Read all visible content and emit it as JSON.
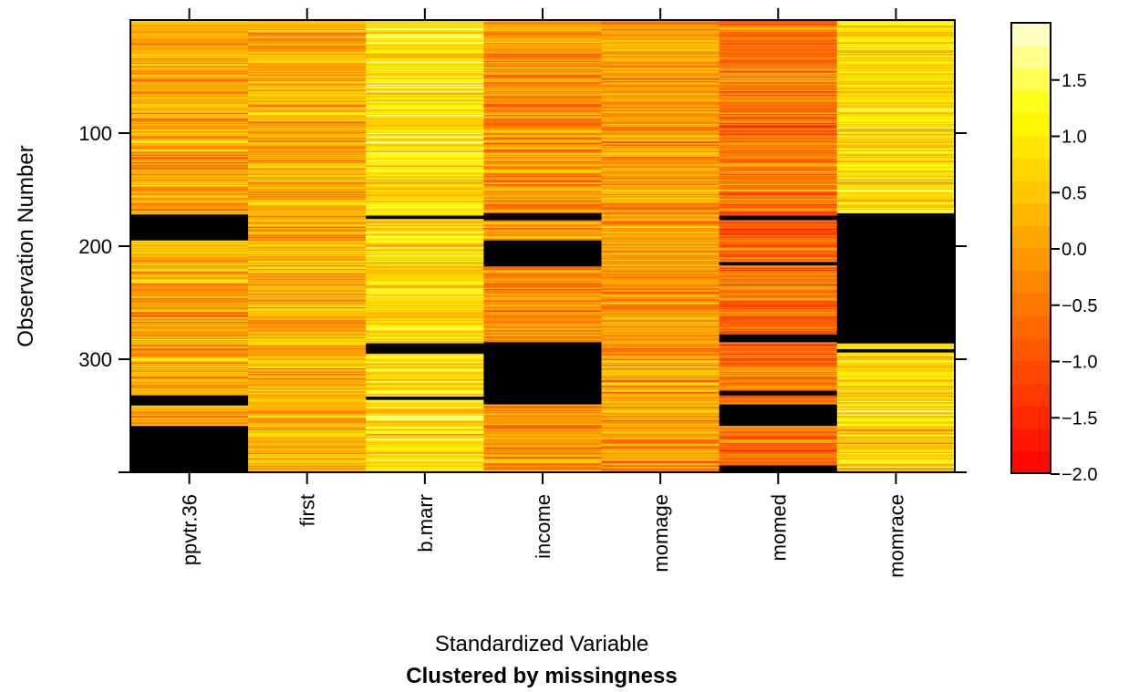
{
  "chart_data": {
    "type": "heatmap",
    "title": "Clustered by missingness",
    "xlabel": "Standardized Variable",
    "ylabel": "Observation Number",
    "variables": [
      "ppvtr.36",
      "first",
      "b.marr",
      "income",
      "momage",
      "momed",
      "momrace"
    ],
    "n_observations": 400,
    "y_ticks": [
      100,
      200,
      300
    ],
    "y_tick_labels": [
      "100",
      "200",
      "300"
    ],
    "colorbar": {
      "range": [
        -2.0,
        2.0
      ],
      "ticks": [
        1.5,
        1.0,
        0.5,
        0.0,
        -0.5,
        -1.0,
        -1.5,
        -2.0
      ],
      "tick_labels": [
        "1.5",
        "1.0",
        "0.5",
        "0.0",
        "−0.5",
        "−1.0",
        "−1.5",
        "−2.0"
      ],
      "low_color": "#FF0000",
      "high_color": "#FFFFE0",
      "levels": 20
    },
    "missing_color": "#000000",
    "missing_ranges": {
      "ppvtr.36": [
        [
          173,
          195
        ],
        [
          333,
          341
        ],
        [
          360,
          400
        ]
      ],
      "first": [],
      "b.marr": [
        [
          174,
          176
        ],
        [
          287,
          295
        ],
        [
          334,
          336
        ]
      ],
      "income": [
        [
          172,
          177
        ],
        [
          196,
          218
        ],
        [
          286,
          340
        ]
      ],
      "momage": [],
      "momed": [
        [
          174,
          177
        ],
        [
          215,
          217
        ],
        [
          279,
          285
        ],
        [
          329,
          332
        ],
        [
          341,
          359
        ],
        [
          395,
          400
        ]
      ],
      "momrace": [
        [
          172,
          286
        ],
        [
          292,
          294
        ]
      ]
    },
    "column_tendency": {
      "ppvtr.36": 0.1,
      "first": 0.2,
      "b.marr": 0.8,
      "income": -0.1,
      "momage": 0.0,
      "momed": -0.5,
      "momrace": 0.7
    }
  }
}
